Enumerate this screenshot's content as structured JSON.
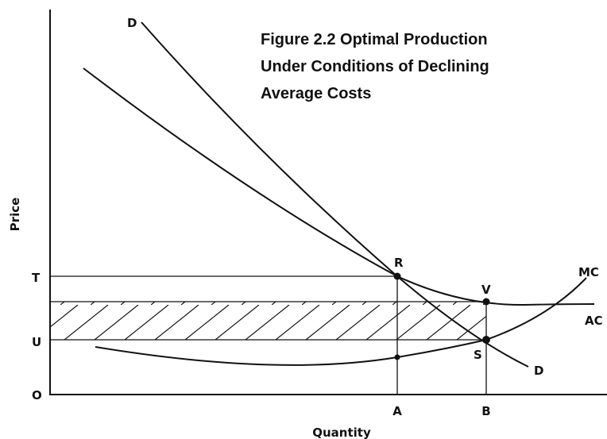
{
  "title": [
    "Figure 2.2   Optimal Production",
    "Under Conditions of Declining",
    "Average Costs"
  ],
  "axes": {
    "y": "Price",
    "x": "Quantity"
  },
  "y_labels": [
    "T",
    "U",
    "O"
  ],
  "x_labels": [
    "A",
    "B"
  ],
  "points": [
    "R",
    "V",
    "S"
  ],
  "curves": {
    "demand_top": "D",
    "demand_bottom": "D",
    "marginal_cost": "MC",
    "average_cost": "AC"
  }
}
